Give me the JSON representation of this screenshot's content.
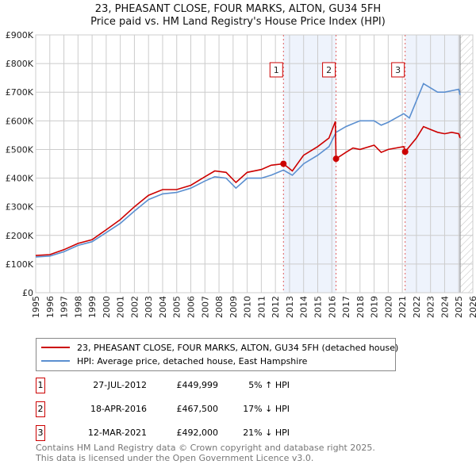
{
  "chart_data": {
    "type": "line",
    "title": "23, PHEASANT CLOSE, FOUR MARKS, ALTON, GU34 5FH",
    "subtitle": "Price paid vs. HM Land Registry's House Price Index (HPI)",
    "xlim": [
      1995,
      2026
    ],
    "ylim": [
      0,
      900000
    ],
    "x_ticks": [
      "1995",
      "1996",
      "1997",
      "1998",
      "1999",
      "2000",
      "2001",
      "2002",
      "2003",
      "2004",
      "2005",
      "2006",
      "2007",
      "2008",
      "2009",
      "2010",
      "2011",
      "2012",
      "2013",
      "2014",
      "2015",
      "2016",
      "2017",
      "2018",
      "2019",
      "2020",
      "2021",
      "2022",
      "2023",
      "2024",
      "2025",
      "2026"
    ],
    "y_ticks": [
      {
        "v": 0,
        "l": "£0"
      },
      {
        "v": 100000,
        "l": "£100K"
      },
      {
        "v": 200000,
        "l": "£200K"
      },
      {
        "v": 300000,
        "l": "£300K"
      },
      {
        "v": 400000,
        "l": "£400K"
      },
      {
        "v": 500000,
        "l": "£500K"
      },
      {
        "v": 600000,
        "l": "£600K"
      },
      {
        "v": 700000,
        "l": "£700K"
      },
      {
        "v": 800000,
        "l": "£800K"
      },
      {
        "v": 900000,
        "l": "£900K"
      }
    ],
    "grid": true,
    "series": [
      {
        "name": "23, PHEASANT CLOSE, FOUR MARKS, ALTON, GU34 5FH (detached house)",
        "color": "#cc0000",
        "x": [
          1995,
          1996,
          1997,
          1998,
          1999,
          2000,
          2001,
          2002,
          2003,
          2004,
          2005,
          2006,
          2007,
          2007.7,
          2008.5,
          2009.2,
          2010,
          2011,
          2011.7,
          2012.57,
          2013.2,
          2014,
          2015,
          2015.8,
          2016.25,
          2016.3,
          2017,
          2017.5,
          2018,
          2019,
          2019.5,
          2020,
          2021.1,
          2021.2,
          2022,
          2022.5,
          2023,
          2023.5,
          2024,
          2024.5,
          2025,
          2025.1
        ],
        "y": [
          130000,
          133000,
          150000,
          172000,
          185000,
          220000,
          255000,
          300000,
          340000,
          360000,
          360000,
          375000,
          405000,
          425000,
          420000,
          385000,
          420000,
          430000,
          445000,
          449999,
          425000,
          480000,
          510000,
          540000,
          598000,
          467500,
          490000,
          505000,
          500000,
          515000,
          490000,
          500000,
          510000,
          492000,
          540000,
          580000,
          570000,
          560000,
          555000,
          560000,
          555000,
          540000
        ]
      },
      {
        "name": "HPI: Average price, detached house, East Hampshire",
        "color": "#5b8fd0",
        "x": [
          1995,
          1996,
          1997,
          1998,
          1999,
          2000,
          2001,
          2002,
          2003,
          2004,
          2005,
          2006,
          2007,
          2007.7,
          2008.5,
          2009.2,
          2010,
          2011,
          2011.7,
          2012.57,
          2013.2,
          2014,
          2015,
          2015.8,
          2016.3,
          2017,
          2017.5,
          2018,
          2019,
          2019.5,
          2020,
          2021.1,
          2021.5,
          2022,
          2022.5,
          2023,
          2023.5,
          2024,
          2024.5,
          2025,
          2025.1
        ],
        "y": [
          125000,
          128000,
          143000,
          165000,
          178000,
          210000,
          242000,
          285000,
          325000,
          345000,
          350000,
          365000,
          390000,
          405000,
          400000,
          365000,
          400000,
          400000,
          410000,
          428000,
          410000,
          450000,
          480000,
          510000,
          560000,
          580000,
          590000,
          600000,
          600000,
          585000,
          595000,
          625000,
          610000,
          670000,
          730000,
          715000,
          700000,
          700000,
          705000,
          710000,
          690000
        ]
      }
    ],
    "annotations": [
      {
        "id": "1",
        "x": 2012.57
      },
      {
        "id": "2",
        "x": 2016.3
      },
      {
        "id": "3",
        "x": 2021.2
      }
    ],
    "shaded_ranges": [
      [
        2012.57,
        2016.3
      ],
      [
        2021.2,
        2025.1
      ]
    ],
    "hatched_after": 2025.1
  },
  "legend": {
    "red": "23, PHEASANT CLOSE, FOUR MARKS, ALTON, GU34 5FH (detached house)",
    "blue": "HPI: Average price, detached house, East Hampshire"
  },
  "sales": [
    {
      "num": "1",
      "date": "27-JUL-2012",
      "price": "£449,999",
      "hpi": "5% ↑ HPI"
    },
    {
      "num": "2",
      "date": "18-APR-2016",
      "price": "£467,500",
      "hpi": "17% ↓ HPI"
    },
    {
      "num": "3",
      "date": "12-MAR-2021",
      "price": "£492,000",
      "hpi": "21% ↓ HPI"
    }
  ],
  "footer": {
    "line1": "Contains HM Land Registry data © Crown copyright and database right 2025.",
    "line2": "This data is licensed under the Open Government Licence v3.0."
  }
}
